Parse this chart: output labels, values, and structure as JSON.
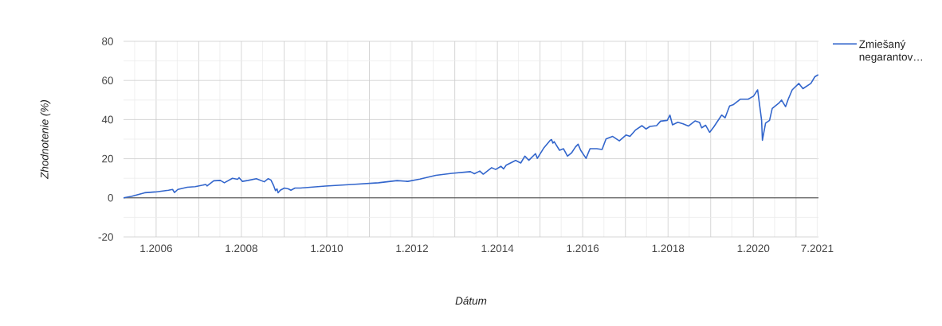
{
  "chart_data": {
    "type": "line",
    "xlabel": "Dátum",
    "ylabel": "Zhodnotenie (%)",
    "x": [
      "2005-03-28",
      "2005-06-03",
      "2005-09-25",
      "2005-12-25",
      "2006-04-17",
      "2006-05-22",
      "2006-06-07",
      "2006-07-06",
      "2006-09-24",
      "2006-12-01",
      "2007-03-02",
      "2007-03-13",
      "2007-05-09",
      "2007-07-05",
      "2007-08-08",
      "2007-10-16",
      "2007-11-30",
      "2007-12-12",
      "2008-01-10",
      "2008-02-28",
      "2008-05-08",
      "2008-05-30",
      "2008-07-15",
      "2008-08-18",
      "2008-09-10",
      "2008-10-02",
      "2008-10-19",
      "2008-11-01",
      "2008-11-10",
      "2008-11-29",
      "2009-01-03",
      "2009-02-06",
      "2009-02-28",
      "2009-04-04",
      "2009-05-19",
      "2009-12-20",
      "2010-08-06",
      "2011-03-20",
      "2011-08-26",
      "2011-11-26",
      "2012-03-08",
      "2012-07-23",
      "2012-12-07",
      "2013-05-15",
      "2013-06-18",
      "2013-08-03",
      "2013-09-02",
      "2013-11-13",
      "2013-12-17",
      "2014-01-31",
      "2014-02-23",
      "2014-03-17",
      "2014-06-06",
      "2014-07-20",
      "2014-08-24",
      "2014-09-27",
      "2014-11-23",
      "2014-12-09",
      "2015-01-31",
      "2015-03-29",
      "2015-04-10",
      "2015-04-21",
      "2015-05-02",
      "2015-06-17",
      "2015-07-21",
      "2015-08-24",
      "2015-09-27",
      "2015-10-31",
      "2015-11-23",
      "2015-12-15",
      "2016-01-30",
      "2016-03-04",
      "2016-04-30",
      "2016-06-15",
      "2016-07-19",
      "2016-09-14",
      "2016-11-10",
      "2017-01-06",
      "2017-02-09",
      "2017-03-27",
      "2017-05-23",
      "2017-06-26",
      "2017-07-30",
      "2017-09-25",
      "2017-10-29",
      "2017-12-25",
      "2018-01-17",
      "2018-02-08",
      "2018-03-26",
      "2018-05-10",
      "2018-06-24",
      "2018-08-20",
      "2018-09-28",
      "2018-10-16",
      "2018-11-19",
      "2018-12-23",
      "2019-01-27",
      "2019-04-05",
      "2019-05-04",
      "2019-06-12",
      "2019-07-16",
      "2019-09-11",
      "2019-11-18",
      "2020-01-03",
      "2020-02-07",
      "2020-03-12",
      "2020-03-19",
      "2020-04-15",
      "2020-05-19",
      "2020-06-11",
      "2020-08-07",
      "2020-08-30",
      "2020-10-03",
      "2020-10-26",
      "2020-11-29",
      "2021-01-25",
      "2021-03-01",
      "2021-05-08",
      "2021-06-11",
      "2021-07-10"
    ],
    "series": [
      {
        "name": "Zmiešaný negarantov…",
        "color": "#3366cc",
        "values": [
          0.0,
          0.7,
          2.6,
          3.0,
          3.9,
          4.3,
          2.7,
          4.3,
          5.4,
          5.7,
          6.8,
          6.1,
          8.7,
          8.9,
          7.7,
          10.0,
          9.5,
          10.3,
          8.4,
          8.9,
          9.8,
          9.3,
          8.2,
          9.8,
          9.1,
          6.4,
          3.7,
          4.6,
          2.6,
          3.9,
          5.0,
          4.6,
          3.9,
          5.0,
          5.0,
          6.0,
          6.8,
          7.7,
          8.8,
          8.4,
          9.6,
          11.5,
          12.5,
          13.4,
          12.3,
          13.7,
          12.1,
          15.4,
          14.5,
          16.1,
          14.8,
          16.7,
          19.1,
          17.8,
          21.3,
          19.2,
          22.6,
          20.2,
          25.3,
          29.4,
          29.8,
          28.0,
          28.7,
          24.3,
          25.1,
          21.3,
          22.9,
          26.0,
          27.4,
          24.3,
          20.2,
          25.1,
          25.1,
          24.7,
          30.1,
          31.4,
          29.1,
          32.1,
          31.4,
          34.6,
          36.9,
          35.2,
          36.5,
          36.9,
          39.2,
          39.6,
          42.3,
          37.3,
          38.6,
          37.8,
          36.7,
          39.3,
          38.5,
          35.8,
          37.1,
          33.5,
          36.2,
          42.3,
          40.9,
          47.0,
          47.7,
          50.4,
          50.4,
          52.0,
          55.2,
          39.6,
          29.4,
          38.2,
          39.6,
          45.7,
          48.4,
          50.0,
          46.6,
          50.4,
          55.2,
          58.5,
          55.8,
          58.5,
          61.9,
          62.9
        ]
      }
    ],
    "xlim": [
      "2005-03-28",
      "2021-07-12"
    ],
    "ylim": [
      -20,
      80
    ],
    "xticks": [
      {
        "value": "2005-07",
        "label": null
      },
      {
        "value": "2006-01",
        "label": "1.2006"
      },
      {
        "value": "2006-07",
        "label": null
      },
      {
        "value": "2007-01",
        "label": null
      },
      {
        "value": "2007-07",
        "label": null
      },
      {
        "value": "2008-01",
        "label": "1.2008"
      },
      {
        "value": "2008-07",
        "label": null
      },
      {
        "value": "2009-01",
        "label": null
      },
      {
        "value": "2009-07",
        "label": null
      },
      {
        "value": "2010-01",
        "label": "1.2010"
      },
      {
        "value": "2010-07",
        "label": null
      },
      {
        "value": "2011-01",
        "label": null
      },
      {
        "value": "2011-07",
        "label": null
      },
      {
        "value": "2012-01",
        "label": "1.2012"
      },
      {
        "value": "2012-07",
        "label": null
      },
      {
        "value": "2013-01",
        "label": null
      },
      {
        "value": "2013-07",
        "label": null
      },
      {
        "value": "2014-01",
        "label": "1.2014"
      },
      {
        "value": "2014-07",
        "label": null
      },
      {
        "value": "2015-01",
        "label": null
      },
      {
        "value": "2015-07",
        "label": null
      },
      {
        "value": "2016-01",
        "label": "1.2016"
      },
      {
        "value": "2016-07",
        "label": null
      },
      {
        "value": "2017-01",
        "label": null
      },
      {
        "value": "2017-07",
        "label": null
      },
      {
        "value": "2018-01",
        "label": "1.2018"
      },
      {
        "value": "2018-07",
        "label": null
      },
      {
        "value": "2019-01",
        "label": null
      },
      {
        "value": "2019-07",
        "label": null
      },
      {
        "value": "2020-01",
        "label": "1.2020"
      },
      {
        "value": "2020-07",
        "label": null
      },
      {
        "value": "2021-01",
        "label": null
      },
      {
        "value": "2021-07",
        "label": "7.2021"
      }
    ],
    "yticks": [
      -20,
      {
        "value": -10,
        "label": null
      },
      0,
      {
        "value": 10,
        "label": null
      },
      20,
      {
        "value": 30,
        "label": null
      },
      40,
      {
        "value": 50,
        "label": null
      },
      60,
      {
        "value": 70,
        "label": null
      },
      80
    ],
    "grid": true,
    "legend": "right",
    "ref_lines": [
      {
        "axis": "y",
        "value": 0,
        "color": "#333333"
      }
    ]
  }
}
